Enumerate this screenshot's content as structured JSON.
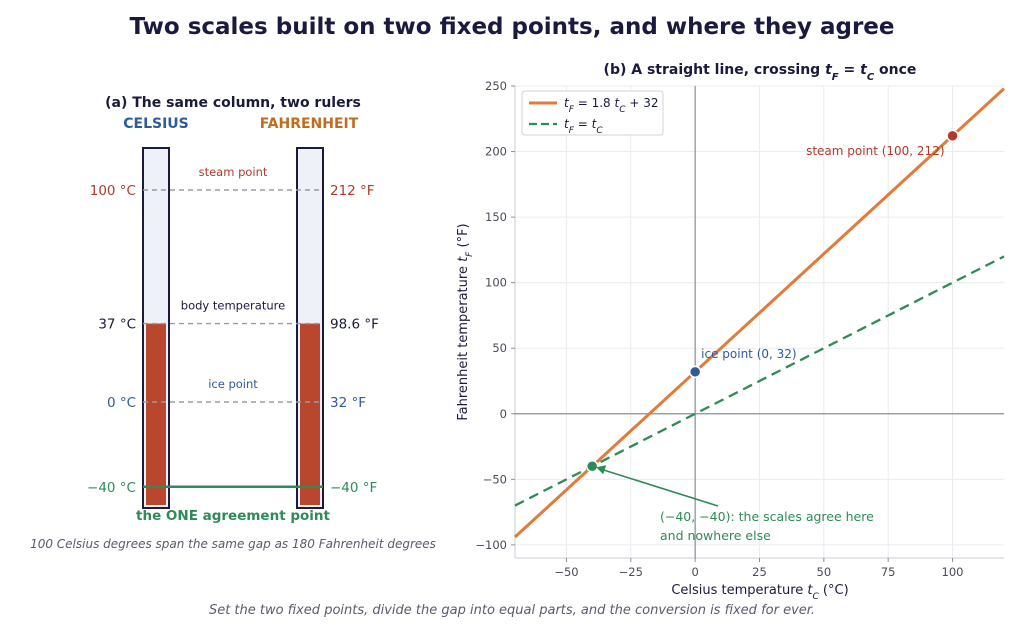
{
  "title": "Two scales built on two fixed points, and where they agree",
  "footer": "Set the two fixed points, divide the gap into equal parts, and the conversion is fixed for ever.",
  "colors": {
    "celsius": "#2e5b9a",
    "fahrenheit": "#c06c20",
    "steam": "#b03a2e",
    "ice": "#2e5b9a",
    "agree": "#2e8b57",
    "column": "#b8472e",
    "line_main": "#e07b39",
    "line_identity": "#2e8b57",
    "dark": "#1a1a3e"
  },
  "panel_a": {
    "title": "(a) The same column, two rulers",
    "celsius_header": "CELSIUS",
    "fahrenheit_header": "FAHRENHEIT",
    "levels": [
      {
        "label": "steam point",
        "c_text": "100 °C",
        "f_text": "212 °F",
        "c_value": 100,
        "color": "#b03a2e"
      },
      {
        "label": "body temperature",
        "c_text": "37 °C",
        "f_text": "98.6 °F",
        "c_value": 37,
        "color": "#1a1a3e"
      },
      {
        "label": "ice point",
        "c_text": "0 °C",
        "f_text": "32 °F",
        "c_value": 0,
        "color": "#2e5b9a"
      },
      {
        "label": "",
        "c_text": "−40 °C",
        "f_text": "−40 °F",
        "c_value": -40,
        "color": "#2e8b57"
      }
    ],
    "column_level_c": 37,
    "agreement_label": "the ONE agreement point",
    "caption": "100 Celsius degrees span the same gap as 180 Fahrenheit degrees"
  },
  "chart_data": {
    "type": "line",
    "title": "(b) A straight line, crossing t_F = t_C once",
    "xlabel": "Celsius temperature  t_C  (°C)",
    "ylabel": "Fahrenheit temperature  t_F  (°F)",
    "xlim": [
      -70,
      120
    ],
    "ylim": [
      -110,
      250
    ],
    "xticks": [
      -50,
      -25,
      0,
      25,
      50,
      75,
      100
    ],
    "yticks": [
      -100,
      -50,
      0,
      50,
      100,
      150,
      200,
      250
    ],
    "grid": true,
    "legend_position": "top-left",
    "series": [
      {
        "name": "t_F = 1.8 t_C + 32",
        "x": [
          -70,
          120
        ],
        "y": [
          -94,
          248
        ],
        "style": "solid",
        "color": "#e07b39"
      },
      {
        "name": "t_F = t_C",
        "x": [
          -70,
          120
        ],
        "y": [
          -70,
          120
        ],
        "style": "dashed",
        "color": "#2e8b57"
      }
    ],
    "points": [
      {
        "x": 100,
        "y": 212,
        "label": "steam point (100, 212)",
        "color": "#b03a2e"
      },
      {
        "x": 0,
        "y": 32,
        "label": "ice point (0, 32)",
        "color": "#2e5b9a"
      },
      {
        "x": -40,
        "y": -40,
        "label": "",
        "color": "#2e8b57"
      }
    ],
    "annotation": {
      "line1": "(−40, −40): the scales agree here",
      "line2": "and nowhere else",
      "x": -40,
      "y": -40,
      "color": "#2e8b57"
    }
  }
}
